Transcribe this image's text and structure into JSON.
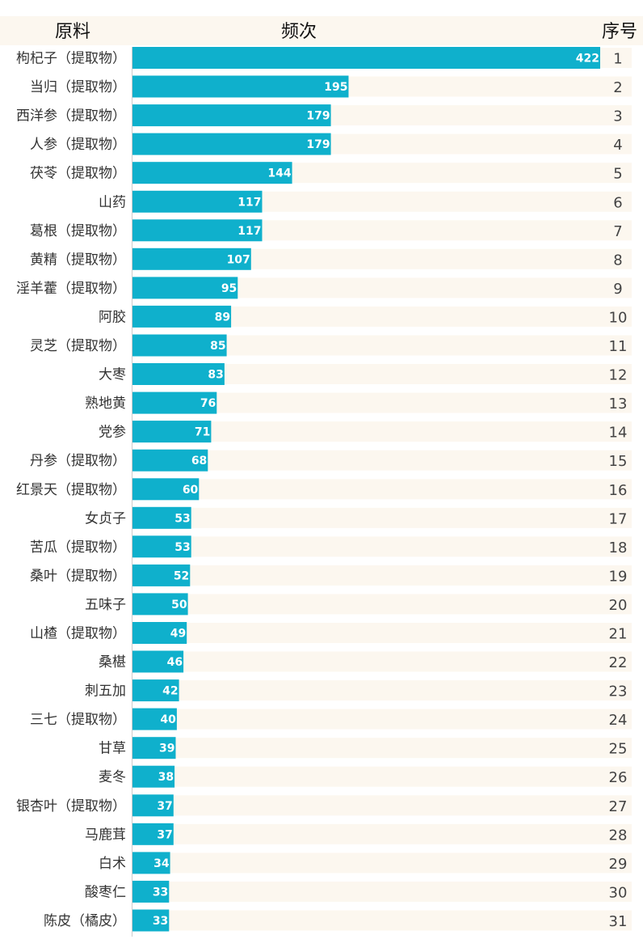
{
  "chart_data": {
    "type": "bar",
    "orientation": "horizontal",
    "columns": {
      "category": "原料",
      "value": "频次",
      "rank": "序号"
    },
    "categories": [
      "枸杞子（提取物）",
      "当归（提取物）",
      "西洋参（提取物）",
      "人参（提取物）",
      "茯苓（提取物）",
      "山药",
      "葛根（提取物）",
      "黄精（提取物）",
      "淫羊藿（提取物）",
      "阿胶",
      "灵芝（提取物）",
      "大枣",
      "熟地黄",
      "党参",
      "丹参（提取物）",
      "红景天（提取物）",
      "女贞子",
      "苦瓜（提取物）",
      "桑叶（提取物）",
      "五味子",
      "山楂（提取物）",
      "桑椹",
      "刺五加",
      "三七（提取物）",
      "甘草",
      "麦冬",
      "银杏叶（提取物）",
      "马鹿茸",
      "白术",
      "酸枣仁",
      "陈皮（橘皮）"
    ],
    "values": [
      422,
      195,
      179,
      179,
      144,
      117,
      117,
      107,
      95,
      89,
      85,
      83,
      76,
      71,
      68,
      60,
      53,
      53,
      52,
      50,
      49,
      46,
      42,
      40,
      39,
      38,
      37,
      37,
      34,
      33,
      33
    ],
    "ranks": [
      1,
      2,
      3,
      4,
      5,
      6,
      7,
      8,
      9,
      10,
      11,
      12,
      13,
      14,
      15,
      16,
      17,
      18,
      19,
      20,
      21,
      22,
      23,
      24,
      25,
      26,
      27,
      28,
      29,
      30,
      31
    ],
    "xlim": [
      0,
      422
    ],
    "legend": "none",
    "grid": false
  },
  "colors": {
    "bar": "#0fb0cc",
    "track": "#fcf7ef",
    "header_bg": "#fcf7ef",
    "axis": "#cccccc"
  }
}
